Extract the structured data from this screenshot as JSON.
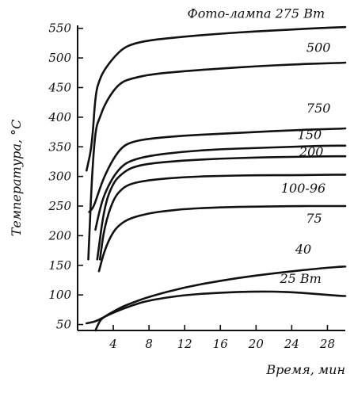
{
  "chart_data": {
    "type": "line",
    "xlabel": "Время, мин",
    "ylabel": "Температура, °C",
    "xlim": [
      0,
      30
    ],
    "ylim": [
      40,
      555
    ],
    "xticks": [
      4,
      8,
      12,
      16,
      20,
      24,
      28
    ],
    "xtick_labels": [
      "4",
      "8",
      "12",
      "16",
      "20",
      "24",
      "28"
    ],
    "yticks": [
      50,
      100,
      150,
      200,
      250,
      300,
      350,
      400,
      450,
      500,
      550
    ],
    "ytick_labels": [
      "50",
      "100",
      "150",
      "200",
      "250",
      "300",
      "350",
      "400",
      "450",
      "500",
      "550"
    ],
    "grid": false,
    "legend": "none",
    "series": [
      {
        "name": "Фото-лампа 275 Вт",
        "label_at": [
          20,
          568
        ],
        "x": [
          1.0,
          1.6,
          2.0,
          2.5,
          3.0,
          4.0,
          5.0,
          6.0,
          8.0,
          12.0,
          16.0,
          20.0,
          24.0,
          28.0,
          30.0
        ],
        "y": [
          310,
          350,
          440,
          465,
          480,
          500,
          515,
          523,
          530,
          536,
          541,
          545,
          548,
          551,
          552
        ]
      },
      {
        "name": "500",
        "label_at": [
          27,
          510
        ],
        "x": [
          1.2,
          1.6,
          2.0,
          2.5,
          3.0,
          4.0,
          5.0,
          6.0,
          8.0,
          12.0,
          16.0,
          20.0,
          24.0,
          28.0,
          30.0
        ],
        "y": [
          160,
          300,
          380,
          400,
          420,
          445,
          460,
          465,
          472,
          478,
          482,
          486,
          489,
          491,
          492
        ]
      },
      {
        "name": "750",
        "label_at": [
          27,
          408
        ],
        "x": [
          1.3,
          1.8,
          2.5,
          3.0,
          4.0,
          5.0,
          6.0,
          8.0,
          12.0,
          16.0,
          20.0,
          24.0,
          28.0,
          30.0
        ],
        "y": [
          240,
          248,
          280,
          300,
          330,
          350,
          358,
          364,
          369,
          372,
          375,
          378,
          380,
          381
        ]
      },
      {
        "name": "150",
        "label_at": [
          26,
          363
        ],
        "x": [
          2.0,
          2.5,
          3.0,
          4.0,
          5.0,
          6.0,
          8.0,
          12.0,
          16.0,
          20.0,
          24.0,
          28.0,
          30.0
        ],
        "y": [
          210,
          245,
          270,
          300,
          318,
          327,
          335,
          342,
          346,
          348,
          350,
          352,
          352
        ]
      },
      {
        "name": "200",
        "label_at": [
          26.2,
          334
        ],
        "x": [
          2.2,
          3.0,
          4.0,
          5.0,
          6.0,
          8.0,
          12.0,
          16.0,
          20.0,
          24.0,
          28.0,
          30.0
        ],
        "y": [
          160,
          250,
          290,
          305,
          315,
          322,
          327,
          330,
          332,
          333,
          334,
          334
        ]
      },
      {
        "name": "100-96",
        "label_at": [
          25.3,
          273
        ],
        "x": [
          2.5,
          3.0,
          4.0,
          5.0,
          6.0,
          8.0,
          12.0,
          16.0,
          20.0,
          24.0,
          28.0,
          30.0
        ],
        "y": [
          160,
          215,
          262,
          280,
          288,
          294,
          299,
          301,
          302,
          302,
          303,
          303
        ]
      },
      {
        "name": "75",
        "label_at": [
          26.5,
          222
        ],
        "x": [
          2.4,
          3.0,
          4.0,
          5.0,
          6.0,
          8.0,
          10.0,
          12.0,
          16.0,
          20.0,
          24.0,
          28.0,
          30.0
        ],
        "y": [
          140,
          175,
          208,
          222,
          230,
          238,
          242,
          245,
          248,
          249,
          250,
          250,
          250
        ]
      },
      {
        "name": "40",
        "label_at": [
          25.3,
          170
        ],
        "x": [
          2.0,
          2.5,
          3.0,
          4.0,
          5.0,
          6.0,
          8.0,
          12.0,
          16.0,
          20.0,
          24.0,
          28.0,
          30.0
        ],
        "y": [
          40,
          57,
          63,
          72,
          80,
          86,
          97,
          113,
          124,
          133,
          140,
          146,
          148
        ]
      },
      {
        "name": "25 Вт",
        "label_at": [
          25,
          120
        ],
        "x": [
          1.0,
          2.0,
          3.0,
          4.0,
          6.0,
          8.0,
          12.0,
          16.0,
          20.0,
          24.0,
          28.0,
          30.0
        ],
        "y": [
          52,
          55,
          63,
          70,
          82,
          91,
          100,
          104,
          106,
          105,
          100,
          98
        ]
      }
    ]
  }
}
